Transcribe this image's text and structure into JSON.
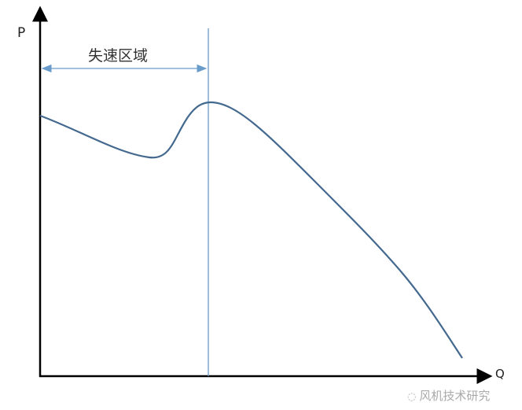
{
  "diagram": {
    "y_axis_label": "P",
    "x_axis_label": "Q",
    "region_label": "失速区域",
    "watermark": "风机技术研究",
    "watermark_icon": "wechat-icon",
    "colors": {
      "axis": "#000000",
      "curve": "#44698f",
      "marker": "#6a9ccb",
      "text": "#333333"
    }
  }
}
